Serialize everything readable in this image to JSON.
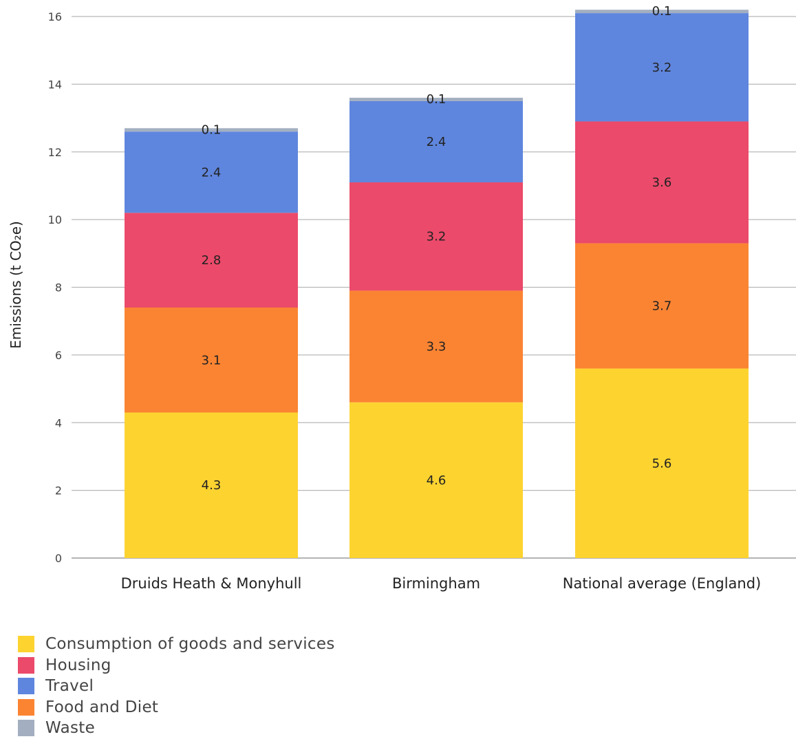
{
  "chart_data": {
    "type": "bar",
    "stacked": true,
    "categories": [
      "Druids Heath & Monyhull",
      "Birmingham",
      "National average (England)"
    ],
    "ylabel": "Emissions (t CO₂e)",
    "xlabel": "",
    "ylim": [
      0,
      16
    ],
    "yticks": [
      0,
      2,
      4,
      6,
      8,
      10,
      12,
      14,
      16
    ],
    "grid": true,
    "legend_position": "bottom-left",
    "series": [
      {
        "name": "Consumption of goods and services",
        "color": "#FDD330",
        "values": [
          4.3,
          4.6,
          5.6
        ],
        "labels": [
          "4.3",
          "4.6",
          "5.6"
        ]
      },
      {
        "name": "Food and Diet",
        "color": "#FB8432",
        "values": [
          3.1,
          3.3,
          3.7
        ],
        "labels": [
          "3.1",
          "3.3",
          "3.7"
        ]
      },
      {
        "name": "Housing",
        "color": "#EB4A6A",
        "values": [
          2.8,
          3.2,
          3.6
        ],
        "labels": [
          "2.8",
          "3.2",
          "3.6"
        ]
      },
      {
        "name": "Travel",
        "color": "#5F86DE",
        "values": [
          2.4,
          2.4,
          3.2
        ],
        "labels": [
          "2.4",
          "2.4",
          "3.2"
        ]
      },
      {
        "name": "Waste",
        "color": "#A3AFC1",
        "values": [
          0.1,
          0.1,
          0.1
        ],
        "labels": [
          "0.1",
          "0.1",
          "0.1"
        ]
      }
    ],
    "legend_order": [
      "Consumption of goods and services",
      "Housing",
      "Travel",
      "Food and Diet",
      "Waste"
    ]
  }
}
